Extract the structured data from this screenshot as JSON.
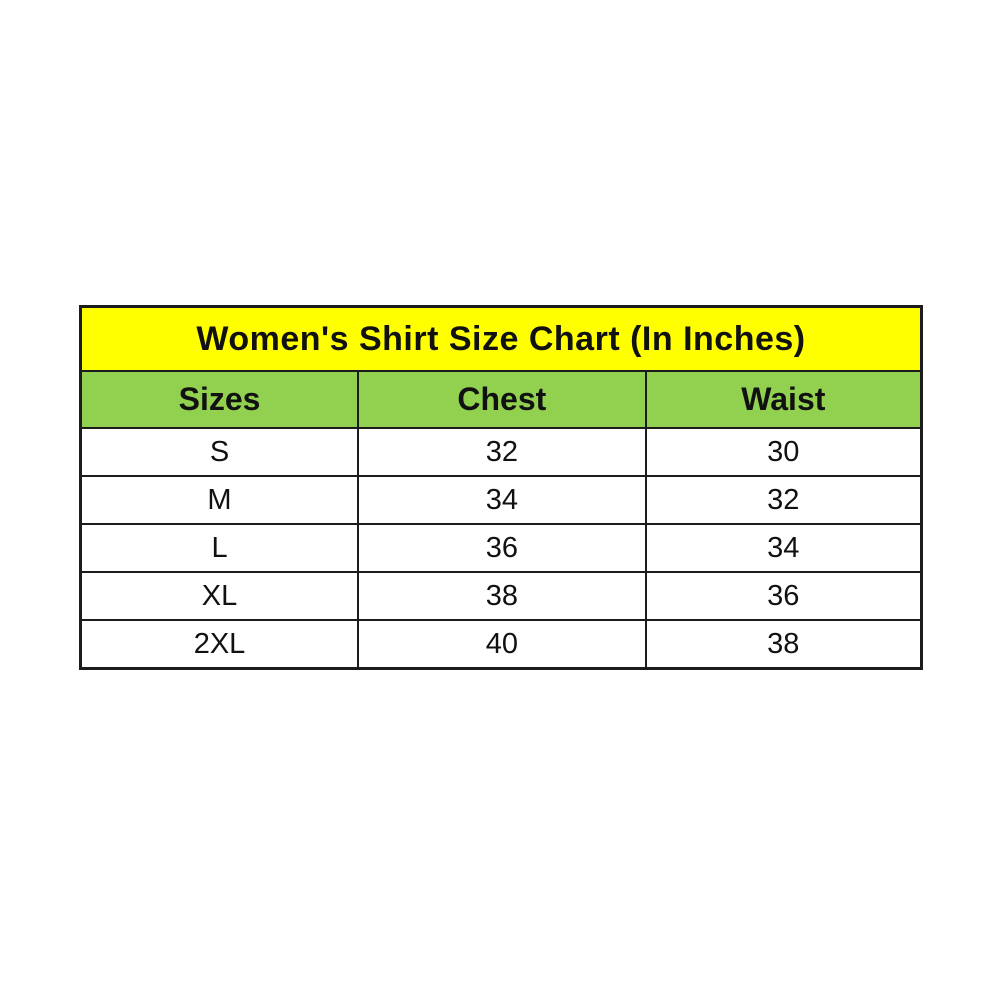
{
  "chart_data": {
    "type": "table",
    "title": "Women's Shirt Size Chart (In Inches)",
    "columns": [
      "Sizes",
      "Chest",
      "Waist"
    ],
    "rows": [
      [
        "S",
        "32",
        "30"
      ],
      [
        "M",
        "34",
        "32"
      ],
      [
        "L",
        "36",
        "34"
      ],
      [
        "XL",
        "38",
        "36"
      ],
      [
        "2XL",
        "40",
        "38"
      ]
    ]
  },
  "colors": {
    "title_background": "#ffff00",
    "header_background": "#92d050",
    "border": "#1c1c1c",
    "text": "#111111",
    "page_background": "#ffffff"
  }
}
